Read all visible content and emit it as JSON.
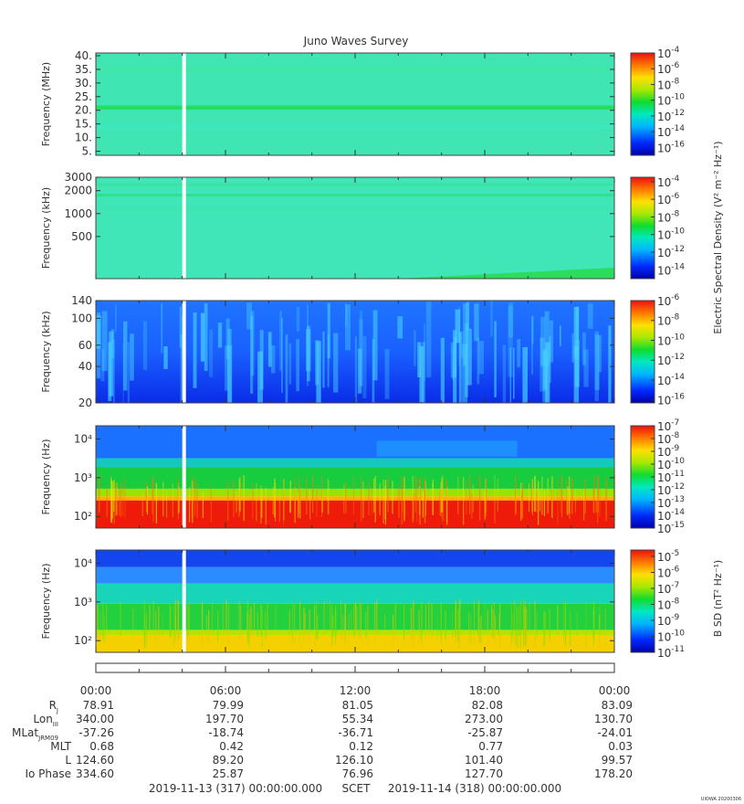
{
  "title": "Juno Waves Survey",
  "stamp": "UIOWA 20200306",
  "chart_data": [
    {
      "type": "heatmap",
      "ylabel": "Frequency (MHz)",
      "y_scale": "linear",
      "ylim": [
        3.5,
        41
      ],
      "yticks": [
        5,
        10,
        15,
        20,
        25,
        30,
        35,
        40
      ],
      "ytick_labels": [
        "5.",
        "10.",
        "15.",
        "20.",
        "25.",
        "30.",
        "35.",
        "40."
      ],
      "colorbar": {
        "ticks": [
          "10-16",
          "10-14",
          "10-12",
          "10-10",
          "10-8",
          "10-6",
          "10-4"
        ],
        "exponent_min": -17,
        "exponent_max": -4
      },
      "data_gap_hours": [
        4.0,
        4.15
      ],
      "bands": [
        {
          "y": 21,
          "color": "#22dd55",
          "height_data": 1.5
        },
        {
          "y": 35,
          "color": "#40e4a8",
          "height_data": 2
        },
        {
          "y": 14,
          "color": "#3ce8c0",
          "height_data": 1.5
        }
      ],
      "base_color": "#3fe6b4"
    },
    {
      "type": "heatmap",
      "ylabel": "Frequency (kHz)",
      "y_scale": "log",
      "ylim": [
        140,
        3000
      ],
      "yticks": [
        500,
        1000,
        2000,
        3000
      ],
      "ytick_labels": [
        "500",
        "1000",
        "2000",
        "3000"
      ],
      "colorbar": {
        "ticks": [
          "10-14",
          "10-12",
          "10-10",
          "10-8",
          "10-6",
          "10-4"
        ],
        "exponent_min": -15,
        "exponent_max": -3.5
      },
      "data_gap_hours": [
        4.0,
        4.15
      ],
      "bands": [
        {
          "y": 1750,
          "color": "#2ee08a",
          "height_data": 150
        },
        {
          "y": 2400,
          "color": "#38e49a",
          "height_data": 200
        },
        {
          "y": 1150,
          "color": "#3ee6b0",
          "height_data": 100
        }
      ],
      "base_color": "#40e6b8",
      "corner_enhancement": {
        "from_hour": 14,
        "color": "#2cdc5c"
      }
    },
    {
      "type": "heatmap",
      "ylabel": "Frequency (kHz)",
      "y_scale": "log",
      "ylim": [
        20,
        140
      ],
      "yticks": [
        20,
        40,
        60,
        100,
        140
      ],
      "ytick_labels": [
        "20",
        "40",
        "60",
        "100",
        "140"
      ],
      "colorbar": {
        "ticks": [
          "10-16",
          "10-14",
          "10-12",
          "10-10",
          "10-8",
          "10-6"
        ],
        "exponent_min": -16.3,
        "exponent_max": -6
      },
      "data_gap_hours": [
        4.0,
        4.15
      ],
      "base_color": "#1a64ff",
      "streak_color": "#48d2ff"
    },
    {
      "type": "heatmap",
      "ylabel": "Frequency (Hz)",
      "y_scale": "log",
      "ylim": [
        50,
        22000
      ],
      "yticks": [
        100,
        1000,
        10000
      ],
      "ytick_labels": [
        "10²",
        "10³",
        "10⁴"
      ],
      "colorbar": {
        "ticks": [
          "10-15",
          "10-14",
          "10-13",
          "10-12",
          "10-11",
          "10-10",
          "10-9",
          "10-8",
          "10-7"
        ],
        "exponent_min": -15,
        "exponent_max": -7
      },
      "data_gap_hours": [
        4.0,
        4.15
      ],
      "layers": [
        {
          "from": 50,
          "to": 260,
          "color": "#ee1a0a"
        },
        {
          "from": 260,
          "to": 330,
          "color": "#ffb000"
        },
        {
          "from": 330,
          "to": 520,
          "color": "#9ee000"
        },
        {
          "from": 520,
          "to": 1900,
          "color": "#18cc40"
        },
        {
          "from": 1900,
          "to": 3200,
          "color": "#14c8c0"
        },
        {
          "from": 3200,
          "to": 22000,
          "color": "#1a70ff"
        }
      ]
    },
    {
      "type": "heatmap",
      "ylabel": "Frequency (Hz)",
      "y_scale": "log",
      "ylim": [
        50,
        22000
      ],
      "yticks": [
        100,
        1000,
        10000
      ],
      "ytick_labels": [
        "10²",
        "10³",
        "10⁴"
      ],
      "colorbar": {
        "ticks": [
          "10-11",
          "10-10",
          "10-9",
          "10-8",
          "10-7",
          "10-6",
          "10-5"
        ],
        "exponent_min": -11,
        "exponent_max": -4.6
      },
      "data_gap_hours": [
        4.0,
        4.15
      ],
      "layers": [
        {
          "from": 50,
          "to": 140,
          "color": "#f4d000"
        },
        {
          "from": 140,
          "to": 190,
          "color": "#b6e400"
        },
        {
          "from": 190,
          "to": 900,
          "color": "#22d040"
        },
        {
          "from": 900,
          "to": 3000,
          "color": "#18d4b8"
        },
        {
          "from": 3000,
          "to": 8000,
          "color": "#2a8cff"
        },
        {
          "from": 8000,
          "to": 22000,
          "color": "#1446ee"
        }
      ]
    }
  ],
  "colorbar_titles": {
    "electric": "Electric Spectral Density (V² m⁻² Hz⁻¹)",
    "magnetic": "B SD (nT² Hz⁻¹)"
  },
  "time_axis": {
    "labels": [
      "00:00",
      "06:00",
      "12:00",
      "18:00",
      "00:00"
    ],
    "hours": [
      0,
      6,
      12,
      18,
      24
    ]
  },
  "ephemeris": [
    {
      "label": "R",
      "sub": "J",
      "values": [
        "78.91",
        "79.99",
        "81.05",
        "82.08",
        "83.09"
      ]
    },
    {
      "label": "Lon",
      "sub": "III",
      "values": [
        "340.00",
        "197.70",
        "55.34",
        "273.00",
        "130.70"
      ]
    },
    {
      "label": "MLat",
      "sub": "JRM09",
      "values": [
        "-37.26",
        "-18.74",
        "-36.71",
        "-25.87",
        "-24.01"
      ]
    },
    {
      "label": "MLT",
      "sub": "",
      "values": [
        "0.68",
        "0.42",
        "0.12",
        "0.77",
        "0.03"
      ]
    },
    {
      "label": "L",
      "sub": "",
      "values": [
        "124.60",
        "89.20",
        "126.10",
        "101.40",
        "99.57"
      ]
    },
    {
      "label": "Io Phase",
      "sub": "",
      "values": [
        "334.60",
        "25.87",
        "76.96",
        "127.70",
        "178.20"
      ]
    }
  ],
  "footer": {
    "start": "2019-11-13 (317) 00:00:00.000",
    "center": "SCET",
    "end": "2019-11-14 (318) 00:00:00.000"
  }
}
